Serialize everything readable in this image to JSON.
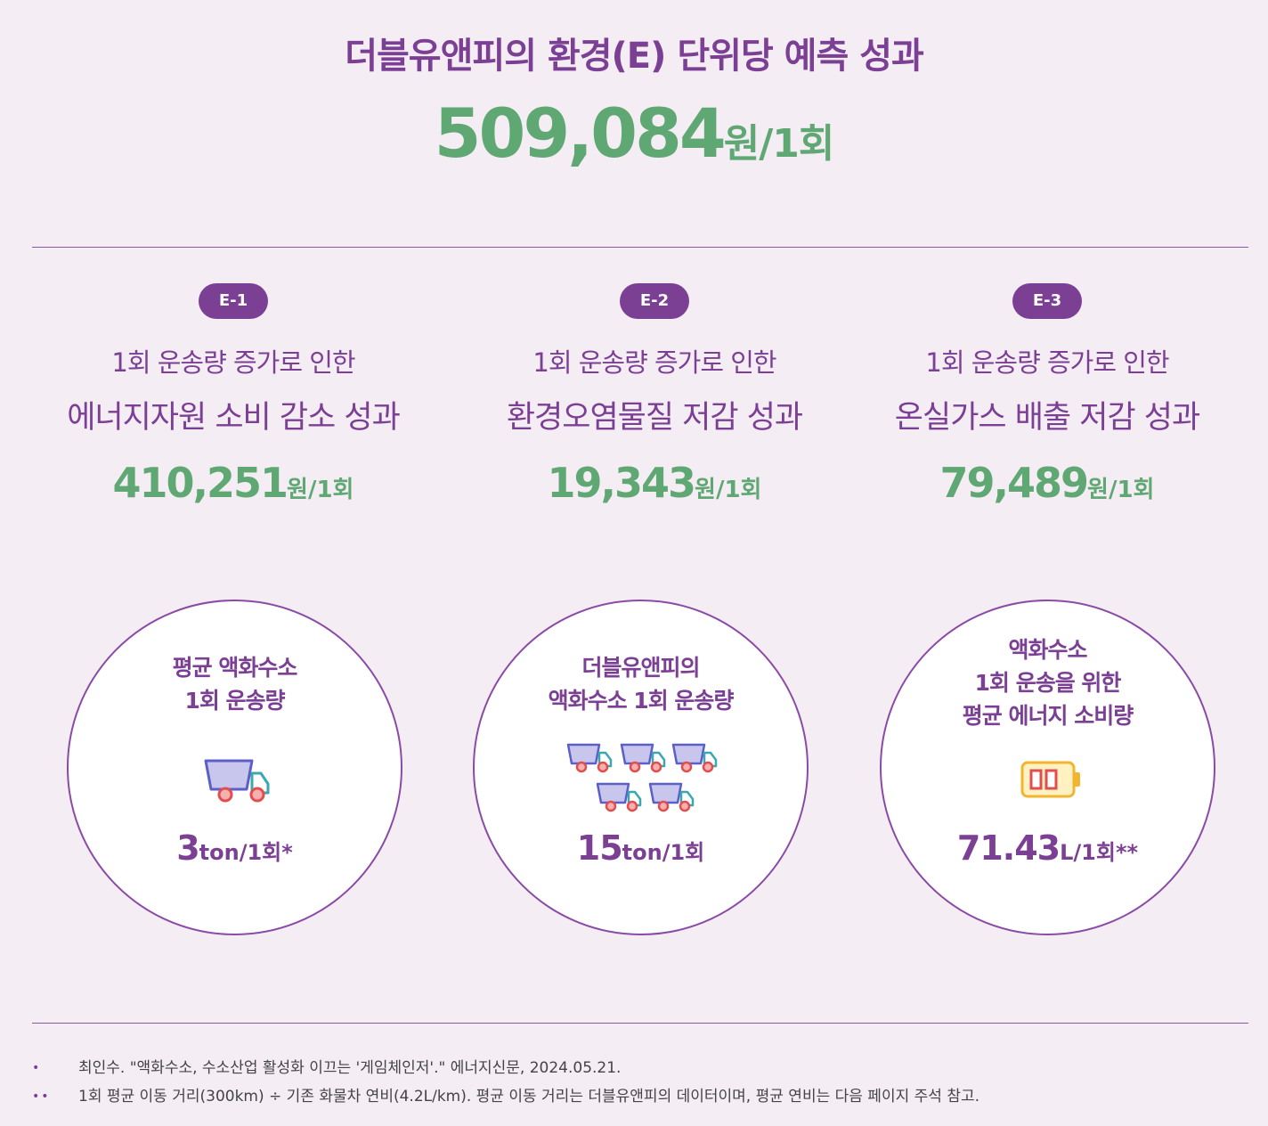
{
  "header": {
    "title": "더블유앤피의 환경(E) 단위당 예측 성과",
    "total_value": "509,084",
    "total_unit": "원/1회"
  },
  "columns": [
    {
      "badge": "E-1",
      "line1": "1회 운송량 증가로 인한",
      "line2": "에너지자원 소비 감소 성과",
      "value": "410,251",
      "unit": "원/1회"
    },
    {
      "badge": "E-2",
      "line1": "1회 운송량 증가로 인한",
      "line2": "환경오염물질 저감 성과",
      "value": "19,343",
      "unit": "원/1회"
    },
    {
      "badge": "E-3",
      "line1": "1회 운송량 증가로 인한",
      "line2": "온실가스 배출 저감 성과",
      "value": "79,489",
      "unit": "원/1회"
    }
  ],
  "circles": [
    {
      "label_lines": [
        "평균 액화수소",
        "1회 운송량"
      ],
      "value": "3",
      "unit": "ton/1회*",
      "icon": "truck-icon"
    },
    {
      "label_lines": [
        "더블유앤피의",
        "액화수소 1회 운송량"
      ],
      "value": "15",
      "unit": "ton/1회",
      "icon": "truck-icon"
    },
    {
      "label_lines": [
        "액화수소",
        "1회 운송을 위한",
        "평균 에너지 소비량"
      ],
      "value": "71.43",
      "unit": "L/1회**",
      "icon": "battery-icon"
    }
  ],
  "footnotes": [
    {
      "marker": "•",
      "text": "최인수. \"액화수소, 수소산업 활성화 이끄는 '게임체인저'.\" 에너지신문, 2024.05.21."
    },
    {
      "marker": "••",
      "text": "1회 평균 이동 거리(300km) ÷ 기존 화물차 연비(4.2L/km). 평균 이동 거리는 더블유앤피의 데이터이며, 평균 연비는 다음  페이지 주석 참고."
    }
  ],
  "colors": {
    "purple": "#7b3f94",
    "green": "#5fa874",
    "background": "#f4edf4"
  }
}
